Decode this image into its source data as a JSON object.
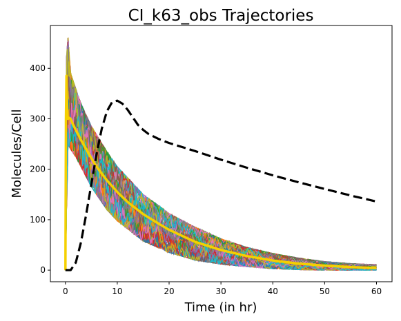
{
  "chart_data": {
    "type": "line",
    "title": "CI_k63_obs Trajectories",
    "xlabel": "Time (in hr)",
    "ylabel": "Molecules/Cell",
    "xlim": [
      -2.9,
      63
    ],
    "ylim": [
      -23,
      485
    ],
    "xticks": [
      0,
      10,
      20,
      30,
      40,
      50,
      60
    ],
    "yticks": [
      0,
      100,
      200,
      300,
      400
    ],
    "grid": false,
    "legend": false,
    "series": [
      {
        "role": "stochastic-ensemble",
        "color": "multicolor",
        "envelope_upper": [
          [
            0.0,
            0
          ],
          [
            0.2,
            420
          ],
          [
            0.5,
            465
          ],
          [
            1,
            390
          ],
          [
            2,
            360
          ],
          [
            3,
            330
          ],
          [
            5,
            285
          ],
          [
            8,
            235
          ],
          [
            10,
            205
          ],
          [
            15,
            150
          ],
          [
            20,
            112
          ],
          [
            25,
            85
          ],
          [
            30,
            62
          ],
          [
            35,
            45
          ],
          [
            40,
            33
          ],
          [
            45,
            24
          ],
          [
            50,
            17
          ],
          [
            55,
            13
          ],
          [
            60,
            11
          ]
        ],
        "envelope_lower": [
          [
            0.0,
            0
          ],
          [
            0.5,
            250
          ],
          [
            1,
            240
          ],
          [
            2,
            225
          ],
          [
            3,
            205
          ],
          [
            5,
            165
          ],
          [
            8,
            120
          ],
          [
            10,
            98
          ],
          [
            15,
            58
          ],
          [
            20,
            35
          ],
          [
            25,
            20
          ],
          [
            30,
            12
          ],
          [
            35,
            7
          ],
          [
            40,
            3
          ],
          [
            45,
            1
          ],
          [
            50,
            0
          ],
          [
            55,
            0
          ],
          [
            60,
            0
          ]
        ]
      },
      {
        "role": "mean",
        "color": "#f5d000",
        "x": [
          0.0,
          0.1,
          0.2,
          0.3,
          0.4,
          0.5,
          0.7,
          1,
          1.5,
          2,
          3,
          4,
          5,
          6,
          8,
          10,
          12,
          15,
          18,
          20,
          25,
          30,
          35,
          40,
          45,
          50,
          55,
          60
        ],
        "y": [
          0,
          300,
          385,
          340,
          305,
          300,
          302,
          300,
          288,
          278,
          258,
          240,
          222,
          205,
          178,
          155,
          135,
          111,
          92,
          80,
          56,
          40,
          28,
          19,
          13,
          9,
          6,
          4
        ]
      },
      {
        "role": "deterministic",
        "color": "#000000",
        "style": "dashed",
        "x": [
          0,
          1,
          2,
          3,
          4,
          5,
          6,
          7,
          8,
          9,
          10,
          11,
          12,
          13,
          14,
          15,
          16,
          18,
          20,
          25,
          30,
          35,
          40,
          45,
          50,
          55,
          60
        ],
        "y": [
          0,
          0,
          15,
          55,
          110,
          170,
          230,
          280,
          315,
          333,
          336,
          330,
          318,
          303,
          288,
          278,
          270,
          260,
          252,
          236,
          219,
          203,
          188,
          174,
          161,
          148,
          136
        ]
      }
    ]
  }
}
